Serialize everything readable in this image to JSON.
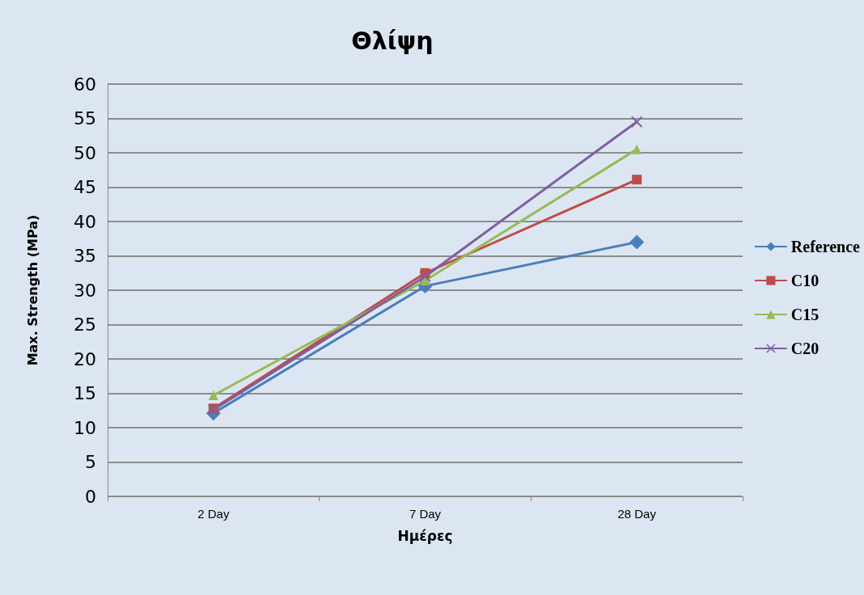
{
  "chart_data": {
    "type": "line",
    "title": "Θλίψη",
    "xlabel": "Ημέρες",
    "ylabel": "Max. Strength (MPa)",
    "categories": [
      "2 Day",
      "7 Day",
      "28 Day"
    ],
    "series": [
      {
        "name": "Reference",
        "color": "#4a7ebb",
        "marker": "diamond",
        "values": [
          12.1,
          30.6,
          37.0
        ]
      },
      {
        "name": "C10",
        "color": "#be4b48",
        "marker": "square",
        "values": [
          12.8,
          32.5,
          46.1
        ]
      },
      {
        "name": "C15",
        "color": "#98b954",
        "marker": "triangle",
        "values": [
          14.7,
          31.4,
          50.5
        ]
      },
      {
        "name": "C20",
        "color": "#7d60a0",
        "marker": "cross",
        "values": [
          12.6,
          32.0,
          54.5
        ]
      }
    ],
    "ylim": [
      0,
      60
    ],
    "yticks": [
      0,
      5,
      10,
      15,
      20,
      25,
      30,
      35,
      40,
      45,
      50,
      55,
      60
    ],
    "grid": "y",
    "legend": "right"
  }
}
